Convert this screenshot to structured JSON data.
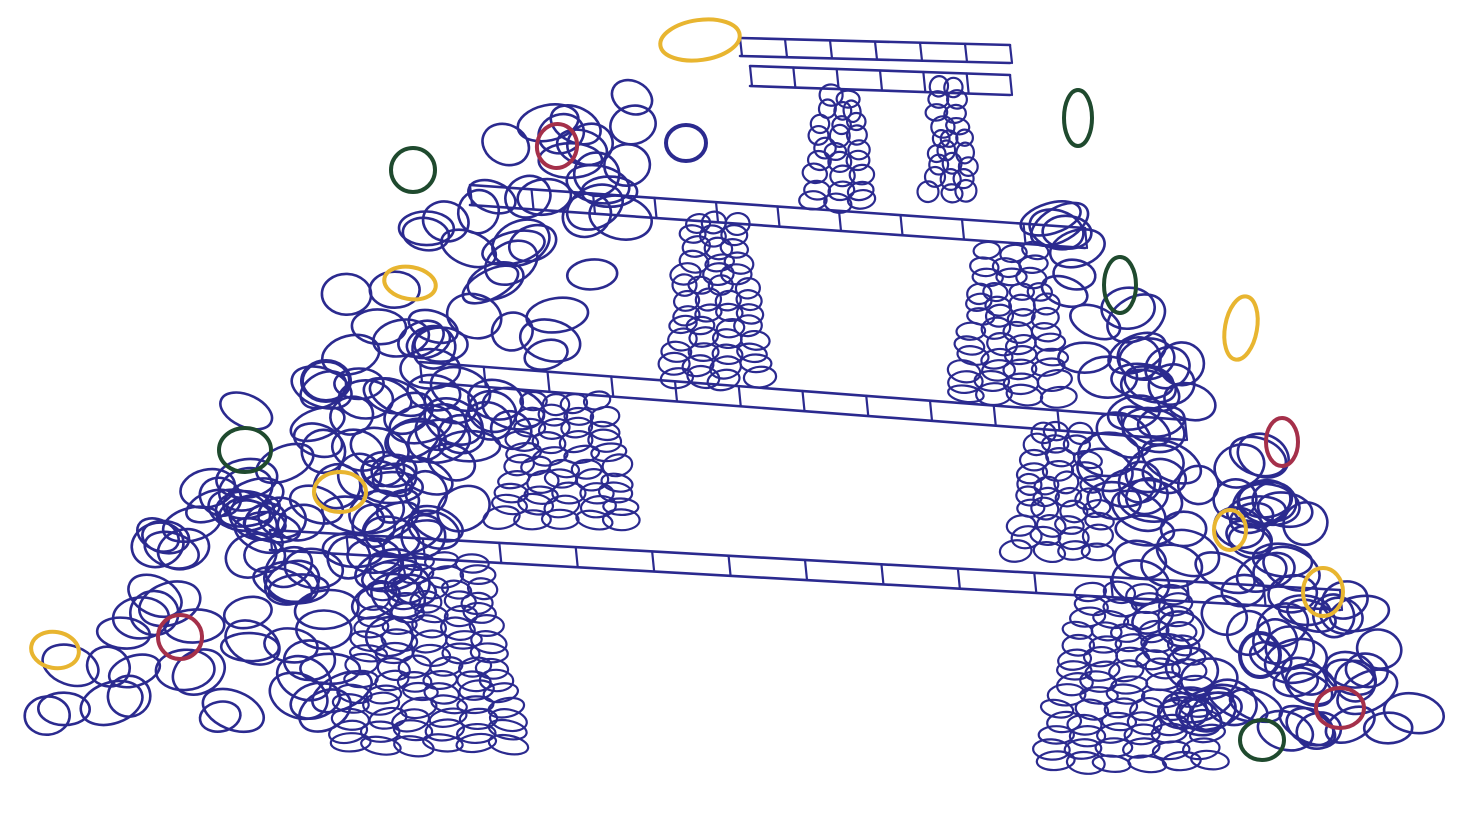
{
  "drawing": {
    "ink_color": "#2b2a8f",
    "accent_colors": {
      "yellow": "#e8b530",
      "green": "#1f4a2e",
      "red": "#a5304a",
      "blue": "#2b2a8f"
    },
    "subject": "stone-arch-bridge-sketch"
  }
}
